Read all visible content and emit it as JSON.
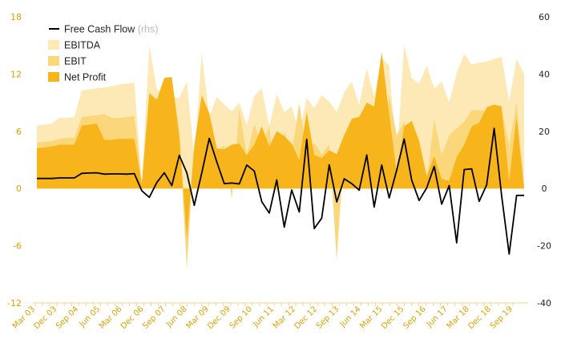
{
  "chart_data": {
    "type": "area",
    "x_labels": [
      "Mar 03",
      "Dec 03",
      "Sep 04",
      "Jun 05",
      "Mar 06",
      "Dec 06",
      "Sep 07",
      "Jun 08",
      "Mar 09",
      "Dec 09",
      "Sep 10",
      "Jun 11",
      "Mar 12",
      "Dec 12",
      "Sep 13",
      "Jun 14",
      "Mar 15",
      "Dec 15",
      "Sep 16",
      "Jun 17",
      "Mar 18",
      "Dec 18",
      "Sep 19"
    ],
    "y_left": {
      "ticks": [
        -12,
        -6,
        0,
        6,
        12,
        18
      ],
      "range": [
        -12,
        18
      ]
    },
    "y_right": {
      "ticks": [
        -40,
        -20,
        0,
        20,
        40,
        60
      ],
      "range": [
        -40,
        60
      ]
    },
    "legend": [
      {
        "label": "Free Cash Flow",
        "note": "(rhs)",
        "color": "#000000",
        "type": "line"
      },
      {
        "label": "EBITDA",
        "color": "#fde9b5",
        "type": "area"
      },
      {
        "label": "EBIT",
        "color": "#fbd77c",
        "type": "area"
      },
      {
        "label": "Net Profit",
        "color": "#f7b51b",
        "type": "area"
      }
    ],
    "series": [
      {
        "name": "EBITDA",
        "axis": "left",
        "values": [
          6.6,
          6.7,
          6.8,
          7.4,
          7.4,
          7.5,
          10.3,
          10.4,
          10.5,
          10.6,
          10.7,
          10.9,
          11.0,
          11.1,
          0.5,
          15.0,
          10.4,
          10.0,
          9.6,
          9.5,
          11.2,
          3.3,
          14.2,
          7.6,
          9.6,
          8.8,
          8.1,
          9.0,
          6.7,
          9.7,
          10.5,
          6.5,
          9.9,
          8.0,
          8.6,
          5.8,
          9.5,
          8.4,
          9.8,
          9.1,
          8.0,
          10.1,
          11.2,
          8.8,
          12.6,
          9.6,
          13.7,
          12.9,
          3.0,
          15.1,
          11.6,
          11.0,
          12.9,
          10.5,
          11.2,
          9.0,
          12.1,
          14.1,
          13.0,
          13.2,
          13.3,
          13.6,
          13.8,
          9.1,
          13.6,
          12.0
        ]
      },
      {
        "name": "EBIT",
        "axis": "left",
        "values": [
          4.8,
          4.9,
          5.0,
          5.2,
          5.3,
          5.3,
          7.5,
          7.6,
          7.7,
          7.8,
          7.4,
          7.4,
          7.5,
          7.6,
          0.5,
          9.7,
          9.4,
          6.4,
          6.0,
          5.8,
          -8.4,
          4.4,
          8.6,
          4.1,
          4.0,
          4.5,
          -1.1,
          8.4,
          3.5,
          6.7,
          4.6,
          6.5,
          -0.6,
          6.0,
          3.6,
          8.9,
          4.0,
          4.8,
          3.6,
          4.6,
          -7.5,
          4.5,
          3.5,
          6.0,
          9.0,
          7.5,
          -0.5,
          9.9,
          5.6,
          7.0,
          2.5,
          4.5,
          0.8,
          7.2,
          3.5,
          5.6,
          6.3,
          7.0,
          8.2,
          8.2,
          8.1,
          8.0,
          8.3,
          4.5,
          9.0,
          0.0
        ]
      },
      {
        "name": "Net Profit",
        "axis": "left",
        "values": [
          4.2,
          4.3,
          4.4,
          4.6,
          4.6,
          4.6,
          6.6,
          6.7,
          6.8,
          5.1,
          5.1,
          5.2,
          5.2,
          5.2,
          0.5,
          10.0,
          9.3,
          11.6,
          11.7,
          5.6,
          -5.3,
          4.5,
          9.8,
          7.9,
          4.2,
          4.1,
          4.6,
          4.7,
          3.5,
          4.6,
          6.5,
          4.4,
          6.0,
          5.5,
          4.7,
          3.0,
          8.0,
          3.5,
          3.2,
          4.0,
          3.6,
          5.6,
          7.3,
          7.5,
          9.0,
          8.6,
          14.3,
          7.8,
          1.6,
          6.5,
          7.1,
          5.0,
          1.3,
          3.4,
          1.0,
          0.8,
          3.3,
          4.6,
          6.5,
          6.9,
          8.5,
          8.8,
          8.6,
          0.8,
          7.5,
          0.0
        ]
      },
      {
        "name": "Free Cash Flow",
        "axis": "right",
        "values": [
          3.5,
          3.5,
          3.5,
          3.7,
          3.7,
          3.7,
          5.3,
          5.4,
          5.5,
          5.0,
          5.1,
          5.1,
          5.0,
          5.2,
          -0.8,
          -3.1,
          2.1,
          5.5,
          1.0,
          11.6,
          5.5,
          -5.9,
          5.5,
          17.5,
          9.3,
          1.7,
          1.9,
          1.6,
          8.2,
          6.1,
          -4.6,
          -8.6,
          3.0,
          -13.5,
          -0.5,
          -8.2,
          17.2,
          -14.0,
          -10.4,
          8.3,
          -4.7,
          3.4,
          1.7,
          -0.6,
          11.7,
          -6.5,
          8.2,
          -3.3,
          6.4,
          17.3,
          2.9,
          -4.2,
          0.2,
          7.7,
          -5.5,
          1.0,
          -19.0,
          6.6,
          6.9,
          -4.5,
          1.2,
          21.0,
          -2.5,
          -22.9,
          -2.4,
          -2.4
        ]
      }
    ]
  }
}
